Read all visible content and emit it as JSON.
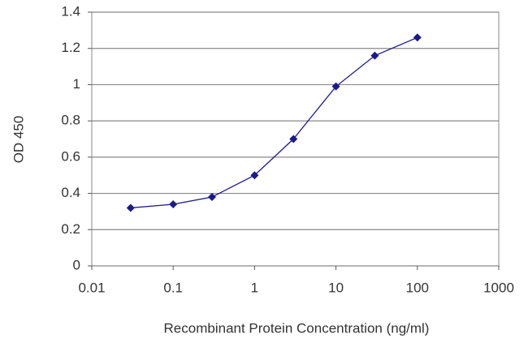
{
  "chart_data": {
    "type": "line",
    "x_label": "Recombinant Protein Concentration (ng/ml)",
    "y_label": "OD 450",
    "x": [
      0.03,
      0.1,
      0.3,
      1,
      3,
      10,
      30,
      100
    ],
    "series": [
      {
        "color": "#1a1a8c",
        "values": [
          0.32,
          0.34,
          0.38,
          0.5,
          0.7,
          0.99,
          1.16,
          1.26
        ]
      }
    ],
    "xscale": "log",
    "xlim": [
      0.01,
      1000
    ],
    "xticks": [
      0.01,
      0.1,
      1,
      10,
      100,
      1000
    ],
    "ylim": [
      0,
      1.4
    ],
    "yticks": [
      0,
      0.2,
      0.4,
      0.6,
      0.8,
      1,
      1.2,
      1.4
    ],
    "grid": true
  }
}
